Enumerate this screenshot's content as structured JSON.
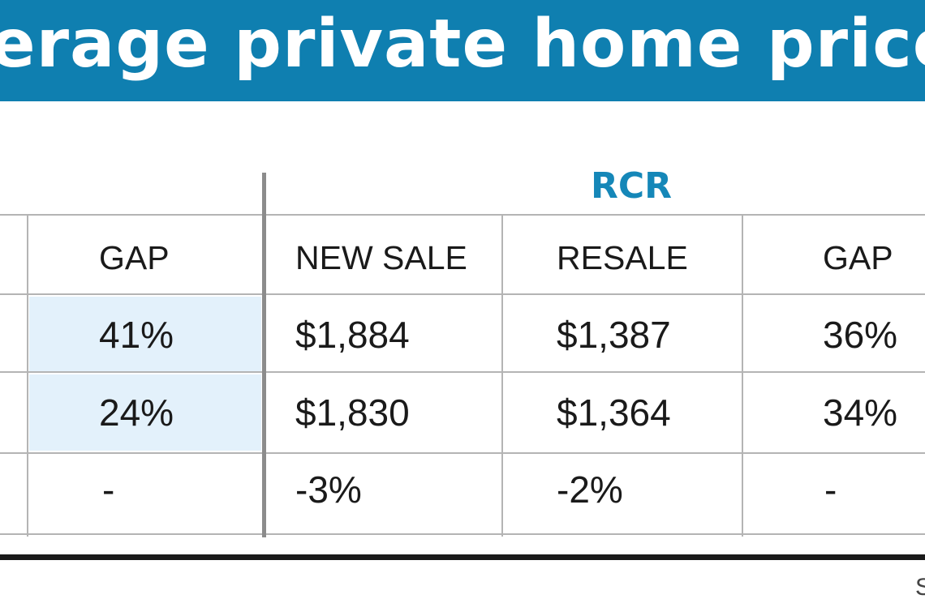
{
  "banner": {
    "title": "erage private home prices"
  },
  "region": "RCR",
  "headers": {
    "left_gap": "GAP",
    "new_sale": "NEW SALE",
    "resale": "RESALE",
    "gap": "GAP"
  },
  "rows": [
    {
      "left_gap": "41%",
      "new_sale": "$1,884",
      "resale": "$1,387",
      "gap": "36%"
    },
    {
      "left_gap": "24%",
      "new_sale": "$1,830",
      "resale": "$1,364",
      "gap": "34%"
    },
    {
      "left_gap": "-",
      "new_sale": "-3%",
      "resale": "-2%",
      "gap": "-"
    }
  ],
  "source": "S"
}
